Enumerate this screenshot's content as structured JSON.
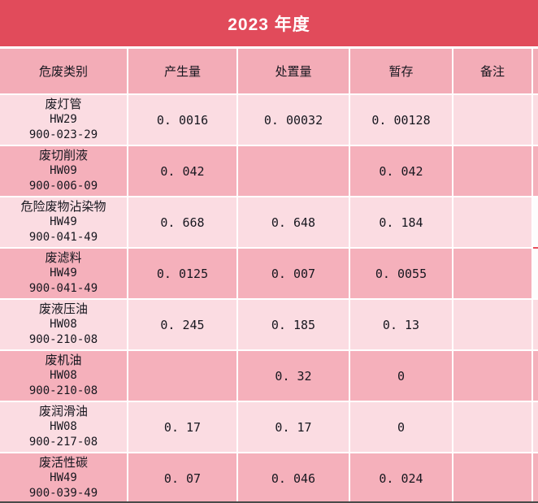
{
  "title": "2023 年度",
  "table": {
    "columns": [
      "危废类别",
      "产生量",
      "处置量",
      "暂存",
      "备注"
    ],
    "rows": [
      {
        "name": "废灯管",
        "hw": "HW29",
        "code": "900-023-29",
        "produced": "0. 0016",
        "disposed": "0. 00032",
        "stored": "0. 00128",
        "note": ""
      },
      {
        "name": "废切削液",
        "hw": "HW09",
        "code": "900-006-09",
        "produced": "0. 042",
        "disposed": "",
        "stored": "0. 042",
        "note": ""
      },
      {
        "name": "危险废物沾染物",
        "hw": "HW49",
        "code": "900-041-49",
        "produced": "0. 668",
        "disposed": "0. 648",
        "stored": "0. 184",
        "note": ""
      },
      {
        "name": "废滤料",
        "hw": "HW49",
        "code": "900-041-49",
        "produced": "0. 0125",
        "disposed": "0. 007",
        "stored": "0. 0055",
        "note": ""
      },
      {
        "name": "废液压油",
        "hw": "HW08",
        "code": "900-210-08",
        "produced": "0. 245",
        "disposed": "0. 185",
        "stored": "0. 13",
        "note": ""
      },
      {
        "name": "废机油",
        "hw": "HW08",
        "code": "900-210-08",
        "produced": "",
        "disposed": "0. 32",
        "stored": "0",
        "note": ""
      },
      {
        "name": "废润滑油",
        "hw": "HW08",
        "code": "900-217-08",
        "produced": "0. 17",
        "disposed": "0. 17",
        "stored": "0",
        "note": ""
      },
      {
        "name": "废活性碳",
        "hw": "HW49",
        "code": "900-039-49",
        "produced": "0. 07",
        "disposed": "0. 046",
        "stored": "0. 024",
        "note": ""
      }
    ]
  },
  "colors": {
    "banner_red": "#E14B5B",
    "header_pink": "#F3ACB7",
    "row_light": "#FBDCE2",
    "row_dark": "#F5B0BB",
    "title_text": "#FFFFFF",
    "cell_text": "#17171F",
    "bottom_border": "#4A4A4A",
    "artifact_red": "#E8505C"
  }
}
